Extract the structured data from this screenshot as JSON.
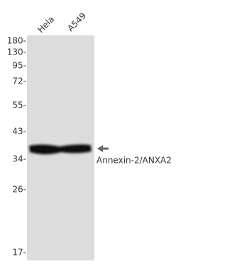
{
  "lanes": [
    "Hela",
    "A549"
  ],
  "markers": [
    "180-",
    "130-",
    "95-",
    "72-",
    "55-",
    "43-",
    "34-",
    "26-",
    "17-"
  ],
  "target": "Annexin-2/ANXA2"
}
